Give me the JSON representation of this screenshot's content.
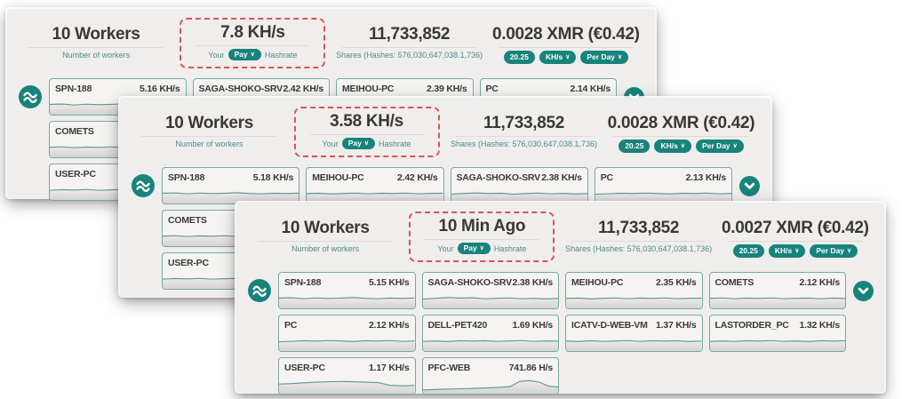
{
  "colors": {
    "teal": "#17837b",
    "panel_bg": "#efeeec",
    "card_border": "#7aa8a2",
    "red_dash": "#df4f5e",
    "text_dark": "#393836",
    "text_teal": "#4e8b86",
    "spark_line": "#5b948e"
  },
  "panels": [
    {
      "name": "back-panel",
      "stats": {
        "workers": {
          "value": "10 Workers",
          "label": "Number of workers"
        },
        "hashrate": {
          "value": "7.8 KH/s",
          "prefix_label": "Your",
          "dropdown_label": "Pay",
          "suffix_label": "Hashrate"
        },
        "shares": {
          "value": "11,733,852",
          "label": "Shares (Hashes: 576,030,647,038.1,736)"
        },
        "earnings": {
          "value": "0.0028 XMR (€0.42)",
          "badges": [
            {
              "label": "20.25"
            },
            {
              "label": "KH/s"
            },
            {
              "label": "Per Day"
            }
          ]
        }
      },
      "worker_rows": [
        [
          {
            "name": "SPN-188",
            "hashrate": "5.16 KH/s",
            "spark": [
              0.55,
              0.57,
              0.52,
              0.56,
              0.53,
              0.55,
              0.58,
              0.54,
              0.52,
              0.55,
              0.53,
              0.56
            ]
          },
          {
            "name": "SAGA-SHOKO-SRV",
            "hashrate": "2.42 KH/s",
            "spark": [
              0.5,
              0.54,
              0.57,
              0.53,
              0.55,
              0.5,
              0.53,
              0.56,
              0.52,
              0.54,
              0.51,
              0.53
            ]
          },
          {
            "name": "MEIHOU-PC",
            "hashrate": "2.39 KH/s",
            "spark": [
              0.53,
              0.55,
              0.51,
              0.54,
              0.56,
              0.52,
              0.55,
              0.53,
              0.56,
              0.52,
              0.54,
              0.55
            ]
          },
          {
            "name": "PC",
            "hashrate": "2.14 KH/s",
            "spark": [
              0.5,
              0.52,
              0.55,
              0.53,
              0.56,
              0.54,
              0.51,
              0.55,
              0.53,
              0.56,
              0.52,
              0.54
            ]
          }
        ],
        [
          {
            "name": "COMETS",
            "hashrate": "",
            "spark": [
              0.54,
              0.56,
              0.52,
              0.55,
              0.53,
              0.56,
              0.52,
              0.54,
              0.55,
              0.52,
              0.55,
              0.53
            ]
          }
        ],
        [
          {
            "name": "USER-PC",
            "hashrate": "",
            "spark": [
              0.52,
              0.55,
              0.53,
              0.56,
              0.52,
              0.54,
              0.56,
              0.53,
              0.55,
              0.52,
              0.54,
              0.55
            ]
          }
        ]
      ]
    },
    {
      "name": "middle-panel",
      "stats": {
        "workers": {
          "value": "10 Workers",
          "label": "Number of workers"
        },
        "hashrate": {
          "value": "3.58 KH/s",
          "prefix_label": "Your",
          "dropdown_label": "Pay",
          "suffix_label": "Hashrate"
        },
        "shares": {
          "value": "11,733,852",
          "label": "Shares (Hashes: 576,030,647,038.1,736)"
        },
        "earnings": {
          "value": "0.0028 XMR (€0.42)",
          "badges": [
            {
              "label": "20.25"
            },
            {
              "label": "KH/s"
            },
            {
              "label": "Per Day"
            }
          ]
        }
      },
      "worker_rows": [
        [
          {
            "name": "SPN-188",
            "hashrate": "5.18 KH/s",
            "spark": [
              0.55,
              0.57,
              0.52,
              0.56,
              0.53,
              0.55,
              0.58,
              0.54,
              0.52,
              0.55,
              0.53,
              0.56
            ]
          },
          {
            "name": "MEIHOU-PC",
            "hashrate": "2.42 KH/s",
            "spark": [
              0.53,
              0.55,
              0.51,
              0.54,
              0.56,
              0.52,
              0.55,
              0.53,
              0.56,
              0.52,
              0.54,
              0.55
            ]
          },
          {
            "name": "SAGA-SHOKO-SRV",
            "hashrate": "2.38 KH/s",
            "spark": [
              0.5,
              0.54,
              0.57,
              0.53,
              0.55,
              0.5,
              0.53,
              0.56,
              0.52,
              0.54,
              0.51,
              0.53
            ]
          },
          {
            "name": "PC",
            "hashrate": "2.13 KH/s",
            "spark": [
              0.5,
              0.52,
              0.55,
              0.53,
              0.56,
              0.54,
              0.51,
              0.55,
              0.53,
              0.56,
              0.52,
              0.54
            ]
          }
        ],
        [
          {
            "name": "COMETS",
            "hashrate": "",
            "spark": [
              0.54,
              0.56,
              0.52,
              0.55,
              0.53,
              0.56,
              0.52,
              0.54,
              0.55,
              0.52,
              0.55,
              0.53
            ]
          }
        ],
        [
          {
            "name": "USER-PC",
            "hashrate": "",
            "spark": [
              0.52,
              0.55,
              0.53,
              0.56,
              0.52,
              0.54,
              0.56,
              0.53,
              0.55,
              0.52,
              0.54,
              0.55
            ]
          }
        ]
      ]
    },
    {
      "name": "front-panel",
      "stats": {
        "workers": {
          "value": "10 Workers",
          "label": "Number of workers"
        },
        "hashrate": {
          "value": "10 Min Ago",
          "prefix_label": "Your",
          "dropdown_label": "Pay",
          "suffix_label": "Hashrate"
        },
        "shares": {
          "value": "11,733,852",
          "label": "Shares (Hashes: 576,030,647,038.1,736)"
        },
        "earnings": {
          "value": "0.0027 XMR (€0.42)",
          "badges": [
            {
              "label": "20.25"
            },
            {
              "label": "KH/s"
            },
            {
              "label": "Per Day"
            }
          ]
        }
      },
      "worker_rows": [
        [
          {
            "name": "SPN-188",
            "hashrate": "5.15 KH/s",
            "spark": [
              0.55,
              0.57,
              0.52,
              0.56,
              0.53,
              0.55,
              0.58,
              0.54,
              0.52,
              0.55,
              0.53,
              0.56
            ]
          },
          {
            "name": "SAGA-SHOKO-SRV",
            "hashrate": "2.38 KH/s",
            "spark": [
              0.5,
              0.54,
              0.58,
              0.55,
              0.57,
              0.52,
              0.54,
              0.56,
              0.52,
              0.54,
              0.51,
              0.53
            ]
          },
          {
            "name": "MEIHOU-PC",
            "hashrate": "2.35 KH/s",
            "spark": [
              0.53,
              0.55,
              0.51,
              0.54,
              0.56,
              0.52,
              0.55,
              0.53,
              0.56,
              0.52,
              0.54,
              0.55
            ]
          },
          {
            "name": "COMETS",
            "hashrate": "2.12 KH/s",
            "spark": [
              0.54,
              0.56,
              0.52,
              0.55,
              0.53,
              0.56,
              0.52,
              0.54,
              0.55,
              0.52,
              0.55,
              0.53
            ]
          }
        ],
        [
          {
            "name": "PC",
            "hashrate": "2.12 KH/s",
            "spark": [
              0.5,
              0.52,
              0.55,
              0.53,
              0.56,
              0.54,
              0.51,
              0.55,
              0.53,
              0.56,
              0.52,
              0.54
            ]
          },
          {
            "name": "DELL-PET420",
            "hashrate": "1.69 KH/s",
            "spark": [
              0.52,
              0.54,
              0.51,
              0.55,
              0.53,
              0.55,
              0.52,
              0.54,
              0.56,
              0.52,
              0.54,
              0.53
            ]
          },
          {
            "name": "ICATV-D-WEB-VM",
            "hashrate": "1.37 KH/s",
            "spark": [
              0.53,
              0.51,
              0.55,
              0.52,
              0.54,
              0.56,
              0.52,
              0.55,
              0.53,
              0.55,
              0.51,
              0.54
            ]
          },
          {
            "name": "LASTORDER_PC",
            "hashrate": "1.32 KH/s",
            "spark": [
              0.51,
              0.54,
              0.52,
              0.55,
              0.53,
              0.56,
              0.52,
              0.54,
              0.51,
              0.55,
              0.53,
              0.55
            ]
          }
        ],
        [
          {
            "name": "USER-PC",
            "hashrate": "1.17 KH/s",
            "spark": [
              0.52,
              0.54,
              0.58,
              0.62,
              0.64,
              0.65,
              0.64,
              0.62,
              0.6,
              0.45,
              0.42,
              0.44
            ]
          },
          {
            "name": "PFC-WEB",
            "hashrate": "741.86 H/s",
            "spark": [
              0.2,
              0.22,
              0.24,
              0.25,
              0.27,
              0.28,
              0.3,
              0.32,
              0.34,
              0.38,
              0.66,
              0.7,
              0.62,
              0.4,
              0.36
            ]
          }
        ]
      ]
    }
  ]
}
